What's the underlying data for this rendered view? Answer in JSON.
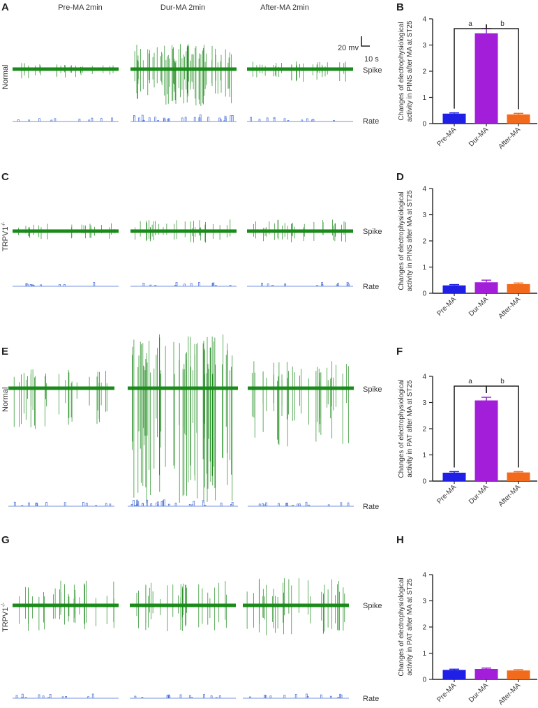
{
  "column_headers": [
    "Pre-MA  2min",
    "Dur-MA  2min",
    "After-MA  2min"
  ],
  "scale_bar": {
    "amplitude": "20 mv",
    "time": "10 s"
  },
  "panels": {
    "A": {
      "letter": "A",
      "group": "Normal",
      "tissue": "PINS"
    },
    "C": {
      "letter": "C",
      "group": "TRPV1",
      "group_sup": "-/-",
      "tissue": "PINS"
    },
    "E": {
      "letter": "E",
      "group": "Normal",
      "tissue": "PAT"
    },
    "G": {
      "letter": "G",
      "group": "TRPV1",
      "group_sup": "-/-",
      "tissue": "PAT"
    }
  },
  "trace_labels": {
    "spike": "Spike",
    "rate": "Rate"
  },
  "colors": {
    "trace": "#1a8a1a",
    "rate": "#4a6fd8",
    "bar_pre": "#1f1fe6",
    "bar_dur": "#a21ed8",
    "bar_after": "#f26a1b",
    "axis": "#222222"
  },
  "chart_data": [
    {
      "panel": "B",
      "type": "bar",
      "categories": [
        "Pre-MA",
        "Dur-MA",
        "After-MA"
      ],
      "values": [
        0.38,
        3.45,
        0.35
      ],
      "errors": [
        0.03,
        0.18,
        0.04
      ],
      "ylim": [
        0,
        4
      ],
      "yticks": [
        0,
        1,
        2,
        3,
        4
      ],
      "ylabel": [
        "Changes of electrophysiological",
        "activity in PINS after MA at ST25"
      ],
      "significance": [
        {
          "from": 0,
          "to": 1,
          "label": "a"
        },
        {
          "from": 1,
          "to": 2,
          "label": "b"
        }
      ]
    },
    {
      "panel": "D",
      "type": "bar",
      "categories": [
        "Pre-MA",
        "Dur-MA",
        "After-MA"
      ],
      "values": [
        0.3,
        0.42,
        0.35
      ],
      "errors": [
        0.03,
        0.08,
        0.04
      ],
      "ylim": [
        0,
        4
      ],
      "yticks": [
        0,
        1,
        2,
        3,
        4
      ],
      "ylabel": [
        "Changes of electrophysiological",
        "activity in PINS after MA at ST25"
      ],
      "significance": []
    },
    {
      "panel": "F",
      "type": "bar",
      "categories": [
        "Pre-MA",
        "Dur-MA",
        "After-MA"
      ],
      "values": [
        0.32,
        3.08,
        0.33
      ],
      "errors": [
        0.04,
        0.12,
        0.03
      ],
      "ylim": [
        0,
        4
      ],
      "yticks": [
        0,
        1,
        2,
        3,
        4
      ],
      "ylabel": [
        "Changes of electrophysiological",
        "activity in PAT after MA at ST25"
      ],
      "significance": [
        {
          "from": 0,
          "to": 1,
          "label": "a"
        },
        {
          "from": 1,
          "to": 2,
          "label": "b"
        }
      ]
    },
    {
      "panel": "H",
      "type": "bar",
      "categories": [
        "Pre-MA",
        "Dur-MA",
        "After-MA"
      ],
      "values": [
        0.36,
        0.4,
        0.34
      ],
      "errors": [
        0.03,
        0.03,
        0.03
      ],
      "ylim": [
        0,
        4
      ],
      "yticks": [
        0,
        1,
        2,
        3,
        4
      ],
      "ylabel": [
        "Changes of electrophysiological",
        "activity in PAT after MA at ST25"
      ],
      "significance": []
    }
  ]
}
